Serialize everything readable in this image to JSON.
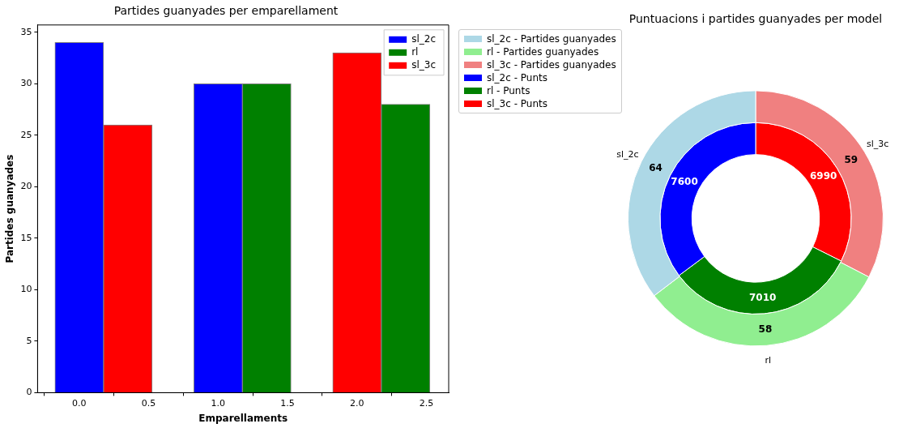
{
  "chart_data": [
    {
      "type": "bar",
      "title": "Partides guanyades per emparellament",
      "xlabel": "Emparellaments",
      "ylabel": "Partides guanyades",
      "series": [
        {
          "name": "sl_2c",
          "color": "#0000ff",
          "x": [
            0,
            1
          ],
          "values": [
            34,
            30
          ]
        },
        {
          "name": "rl",
          "color": "#008000",
          "x": [
            1.35,
            2.35
          ],
          "values": [
            30,
            28
          ]
        },
        {
          "name": "sl_3c",
          "color": "#ff0000",
          "x": [
            0.35,
            2.0
          ],
          "values": [
            26,
            33
          ]
        }
      ],
      "xlim": [
        -0.3,
        2.66
      ],
      "xticks": [
        {
          "value": 0,
          "label": "0.0"
        },
        {
          "value": 0.5,
          "label": "0.5"
        },
        {
          "value": 1,
          "label": "1.0"
        },
        {
          "value": 1.5,
          "label": "1.5"
        },
        {
          "value": 2,
          "label": "2.0"
        },
        {
          "value": 2.5,
          "label": "2.5"
        }
      ],
      "ylim": [
        0,
        35.7
      ],
      "yticks": [
        0,
        5,
        10,
        15,
        20,
        25,
        30,
        35
      ],
      "legend": "top right"
    },
    {
      "type": "donut",
      "title": "Puntuacions i partides guanyades per model",
      "categories": [
        "sl_2c",
        "rl",
        "sl_3c"
      ],
      "series": [
        {
          "name": "- Partides guanyades",
          "colors": [
            "#add8e6",
            "#90ee90",
            "#f08080"
          ],
          "values": [
            64,
            58,
            59
          ]
        },
        {
          "name": "- Punts",
          "colors": [
            "#0000ff",
            "#008000",
            "#ff0000"
          ],
          "values": [
            7600,
            7010,
            6990
          ]
        }
      ],
      "data_labels": true,
      "legend": "top left"
    }
  ]
}
